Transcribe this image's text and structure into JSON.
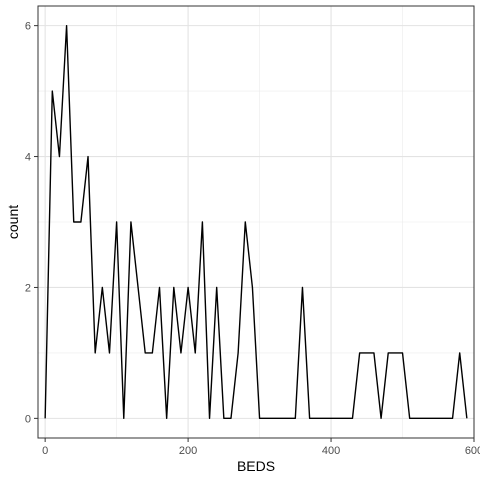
{
  "chart_data": {
    "type": "line",
    "title": "",
    "xlabel": "BEDS",
    "ylabel": "count",
    "xlim": [
      -10,
      600
    ],
    "ylim": [
      -0.3,
      6.3
    ],
    "x_ticks": [
      0,
      200,
      400,
      600
    ],
    "x_tick_labels": [
      "0",
      "200",
      "400",
      "600"
    ],
    "x_minor_ticks": [
      100,
      300,
      500
    ],
    "y_ticks": [
      0,
      2,
      4,
      6
    ],
    "y_tick_labels": [
      "0",
      "2",
      "4",
      "6"
    ],
    "y_minor_ticks": [
      1,
      3,
      5
    ],
    "grid": true,
    "series": [
      {
        "name": "",
        "color": "#000000",
        "x": [
          0,
          10,
          20,
          30,
          40,
          50,
          60,
          70,
          80,
          90,
          100,
          110,
          120,
          130,
          140,
          150,
          160,
          170,
          180,
          190,
          200,
          210,
          220,
          230,
          240,
          250,
          260,
          270,
          280,
          290,
          300,
          310,
          320,
          330,
          340,
          350,
          360,
          370,
          380,
          390,
          400,
          410,
          420,
          430,
          440,
          450,
          460,
          470,
          480,
          490,
          500,
          510,
          520,
          530,
          540,
          550,
          560,
          570,
          580,
          590
        ],
        "values": [
          0,
          5,
          4,
          6,
          3,
          3,
          4,
          1,
          2,
          1,
          3,
          0,
          3,
          2,
          1,
          1,
          2,
          0,
          2,
          1,
          2,
          1,
          3,
          0,
          2,
          0,
          0,
          1,
          3,
          2,
          0,
          0,
          0,
          0,
          0,
          0,
          2,
          0,
          0,
          0,
          0,
          0,
          0,
          0,
          1,
          1,
          1,
          0,
          1,
          1,
          1,
          0,
          0,
          0,
          0,
          0,
          0,
          0,
          1,
          0
        ]
      }
    ]
  }
}
